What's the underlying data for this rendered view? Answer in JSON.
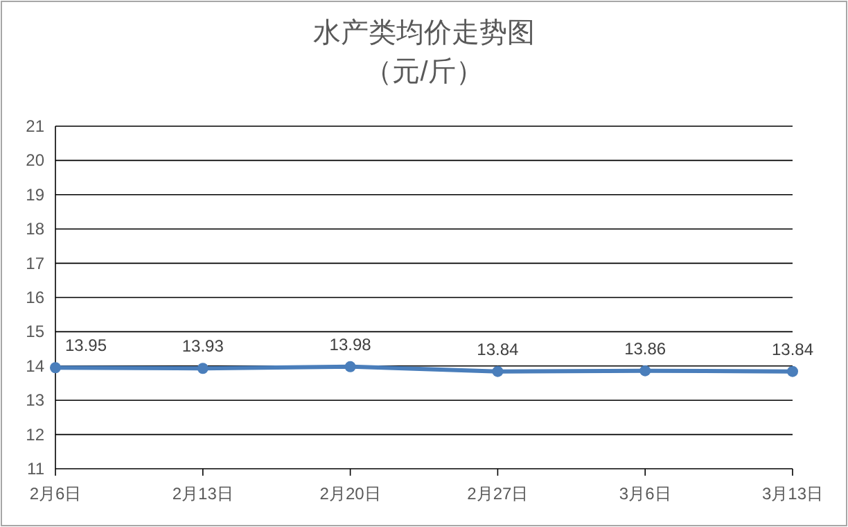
{
  "chart_data": {
    "type": "line",
    "title": "水产类均价走势图",
    "subtitle": "（元/斤）",
    "categories": [
      "2月6日",
      "2月13日",
      "2月20日",
      "2月27日",
      "3月6日",
      "3月13日"
    ],
    "series": [
      {
        "color": "#4a7ebb",
        "values": [
          13.95,
          13.93,
          13.98,
          13.84,
          13.86,
          13.84
        ]
      }
    ],
    "ylim": [
      11,
      21
    ],
    "yticks": [
      11,
      12,
      13,
      14,
      15,
      16,
      17,
      18,
      19,
      20,
      21
    ],
    "grid": "y",
    "marker": "circle",
    "data_labels": true
  }
}
